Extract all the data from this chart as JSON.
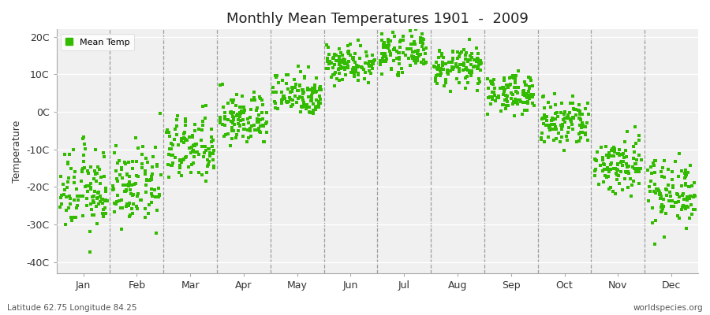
{
  "title": "Monthly Mean Temperatures 1901  -  2009",
  "ylabel": "Temperature",
  "xlabel_months": [
    "Jan",
    "Feb",
    "Mar",
    "Apr",
    "May",
    "Jun",
    "Jul",
    "Aug",
    "Sep",
    "Oct",
    "Nov",
    "Dec"
  ],
  "yticks": [
    -40,
    -30,
    -20,
    -10,
    0,
    10,
    20
  ],
  "ytick_labels": [
    "-40C",
    "-30C",
    "-20C",
    "-10C",
    "0C",
    "10C",
    "20C"
  ],
  "ylim": [
    -43,
    22
  ],
  "dot_color": "#33bb00",
  "fig_bg": "#ffffff",
  "plot_bg": "#f0f0f0",
  "legend_label": "Mean Temp",
  "subtitle_left": "Latitude 62.75 Longitude 84.25",
  "subtitle_right": "worldspecies.org",
  "mean_temps": [
    -21,
    -20,
    -10,
    -2,
    5,
    13,
    16,
    12,
    5,
    -3,
    -14,
    -21
  ],
  "std_temps": [
    5.5,
    5.0,
    4.5,
    3.5,
    3.0,
    2.5,
    2.5,
    2.5,
    2.5,
    3.5,
    4.0,
    4.5
  ],
  "n_years": 109
}
